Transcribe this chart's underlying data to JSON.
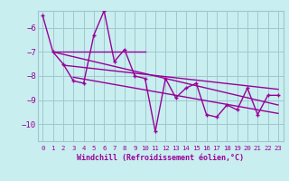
{
  "hours": [
    0,
    1,
    2,
    3,
    4,
    5,
    6,
    7,
    8,
    9,
    10,
    11,
    12,
    13,
    14,
    15,
    16,
    17,
    18,
    19,
    20,
    21,
    22,
    23
  ],
  "windchill": [
    -5.5,
    -7.0,
    -7.5,
    -8.2,
    -8.3,
    -6.3,
    -5.3,
    -7.4,
    -6.9,
    -8.0,
    -8.1,
    -10.3,
    -8.1,
    -8.9,
    -8.5,
    -8.3,
    -9.6,
    -9.7,
    -9.2,
    -9.4,
    -8.5,
    -9.6,
    -8.8,
    -8.8
  ],
  "line_color": "#990099",
  "background_color": "#c8eef0",
  "grid_color": "#a0c8cc",
  "xlabel": "Windchill (Refroidissement éolien,°C)",
  "ylim": [
    -10.7,
    -5.3
  ],
  "xlim": [
    -0.5,
    23.5
  ],
  "yticks": [
    -10,
    -9,
    -8,
    -7,
    -6
  ],
  "xticks": [
    0,
    1,
    2,
    3,
    4,
    5,
    6,
    7,
    8,
    9,
    10,
    11,
    12,
    13,
    14,
    15,
    16,
    17,
    18,
    19,
    20,
    21,
    22,
    23
  ],
  "flat_line": {
    "x": [
      1,
      10
    ],
    "y": [
      -7.0,
      -7.0
    ]
  },
  "reg_line": {
    "x": [
      1,
      23
    ],
    "y": [
      -7.0,
      -9.2
    ]
  },
  "upper_env": {
    "x": [
      2,
      23
    ],
    "y": [
      -7.55,
      -8.55
    ]
  },
  "lower_env": {
    "x": [
      3,
      23
    ],
    "y": [
      -8.05,
      -9.55
    ]
  }
}
